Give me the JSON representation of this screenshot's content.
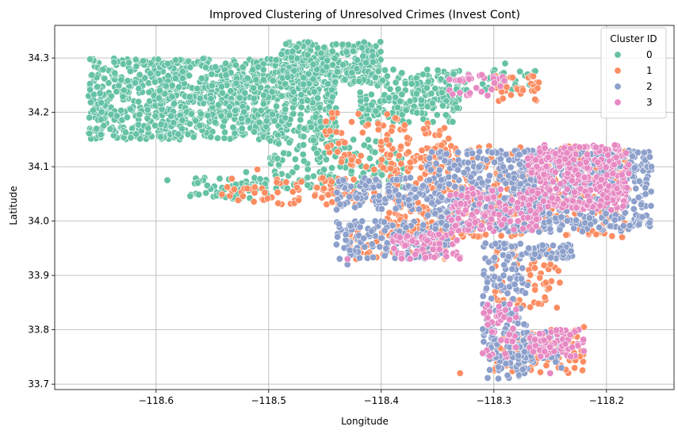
{
  "chart_data": {
    "type": "scatter",
    "title": "Improved Clustering of Unresolved Crimes (Invest Cont)",
    "xlabel": "Longitude",
    "ylabel": "Latitude",
    "xlim": [
      -118.69,
      -118.14
    ],
    "ylim": [
      33.69,
      34.36
    ],
    "xticks": [
      -118.6,
      -118.5,
      -118.4,
      -118.3,
      -118.2
    ],
    "xtick_labels": [
      "−118.6",
      "−118.5",
      "−118.4",
      "−118.3",
      "−118.2"
    ],
    "yticks": [
      33.7,
      33.8,
      33.9,
      34.0,
      34.1,
      34.2,
      34.3
    ],
    "ytick_labels": [
      "33.7",
      "33.8",
      "33.9",
      "34.0",
      "34.1",
      "34.2",
      "34.3"
    ],
    "grid": true,
    "legend": {
      "title": "Cluster ID",
      "position": "top-right",
      "entries": [
        "0",
        "1",
        "2",
        "3"
      ]
    },
    "series": [
      {
        "name": "0",
        "color": "#66c2a5",
        "regions": [
          {
            "lon": [
              -118.66,
              -118.44
            ],
            "lat": [
              34.15,
              34.3
            ],
            "density": 1100
          },
          {
            "lon": [
              -118.49,
              -118.4
            ],
            "lat": [
              34.25,
              34.33
            ],
            "density": 300
          },
          {
            "lon": [
              -118.42,
              -118.33
            ],
            "lat": [
              34.18,
              34.28
            ],
            "density": 220
          },
          {
            "lon": [
              -118.5,
              -118.38
            ],
            "lat": [
              34.06,
              34.15
            ],
            "density": 160
          },
          {
            "lon": [
              -118.57,
              -118.5
            ],
            "lat": [
              34.04,
              34.08
            ],
            "density": 60
          },
          {
            "lon": [
              -118.33,
              -118.26
            ],
            "lat": [
              34.24,
              34.28
            ],
            "density": 40
          }
        ],
        "points": [
          [
            -118.59,
            34.075
          ],
          [
            -118.27,
            34.27
          ],
          [
            -118.29,
            34.29
          ],
          [
            -118.52,
            34.09
          ]
        ]
      },
      {
        "name": "1",
        "color": "#fc8d62",
        "regions": [
          {
            "lon": [
              -118.4,
              -118.18
            ],
            "lat": [
              33.97,
              34.14
            ],
            "density": 450
          },
          {
            "lon": [
              -118.55,
              -118.4
            ],
            "lat": [
              34.03,
              34.08
            ],
            "density": 90
          },
          {
            "lon": [
              -118.45,
              -118.34
            ],
            "lat": [
              34.08,
              34.2
            ],
            "density": 90
          },
          {
            "lon": [
              -118.3,
              -118.22
            ],
            "lat": [
              33.72,
              33.8
            ],
            "density": 90
          },
          {
            "lon": [
              -118.3,
              -118.24
            ],
            "lat": [
              33.84,
              33.96
            ],
            "density": 60
          },
          {
            "lon": [
              -118.43,
              -118.34
            ],
            "lat": [
              33.93,
              33.99
            ],
            "density": 80
          },
          {
            "lon": [
              -118.3,
              -118.26
            ],
            "lat": [
              34.22,
              34.27
            ],
            "density": 35
          }
        ],
        "points": [
          [
            -118.22,
            33.805
          ],
          [
            -118.51,
            34.095
          ],
          [
            -118.33,
            33.72
          ]
        ]
      },
      {
        "name": "2",
        "color": "#8da0cb",
        "regions": [
          {
            "lon": [
              -118.36,
              -118.16
            ],
            "lat": [
              33.98,
              34.13
            ],
            "density": 700
          },
          {
            "lon": [
              -118.44,
              -118.34
            ],
            "lat": [
              33.93,
              34.0
            ],
            "density": 140
          },
          {
            "lon": [
              -118.44,
              -118.36
            ],
            "lat": [
              34.02,
              34.08
            ],
            "density": 110
          },
          {
            "lon": [
              -118.31,
              -118.27
            ],
            "lat": [
              33.71,
              33.96
            ],
            "density": 180
          },
          {
            "lon": [
              -118.28,
              -118.24
            ],
            "lat": [
              33.74,
              33.8
            ],
            "density": 60
          },
          {
            "lon": [
              -118.27,
              -118.23
            ],
            "lat": [
              33.93,
              33.96
            ],
            "density": 50
          }
        ],
        "points": [
          [
            -118.43,
            33.92
          ],
          [
            -118.24,
            33.73
          ],
          [
            -118.16,
            34.1
          ]
        ]
      },
      {
        "name": "3",
        "color": "#e78ac3",
        "regions": [
          {
            "lon": [
              -118.26,
              -118.18
            ],
            "lat": [
              34.02,
              34.14
            ],
            "density": 280
          },
          {
            "lon": [
              -118.34,
              -118.26
            ],
            "lat": [
              33.98,
              34.06
            ],
            "density": 120
          },
          {
            "lon": [
              -118.39,
              -118.33
            ],
            "lat": [
              33.93,
              33.98
            ],
            "density": 70
          },
          {
            "lon": [
              -118.27,
              -118.22
            ],
            "lat": [
              33.75,
              33.8
            ],
            "density": 60
          },
          {
            "lon": [
              -118.31,
              -118.28
            ],
            "lat": [
              33.75,
              33.85
            ],
            "density": 40
          },
          {
            "lon": [
              -118.34,
              -118.29
            ],
            "lat": [
              34.23,
              34.27
            ],
            "density": 30
          },
          {
            "lon": [
              -118.27,
              -118.25
            ],
            "lat": [
              34.08,
              34.12
            ],
            "density": 25
          }
        ],
        "points": [
          [
            -118.25,
            33.72
          ],
          [
            -118.43,
            33.93
          ]
        ]
      }
    ]
  }
}
